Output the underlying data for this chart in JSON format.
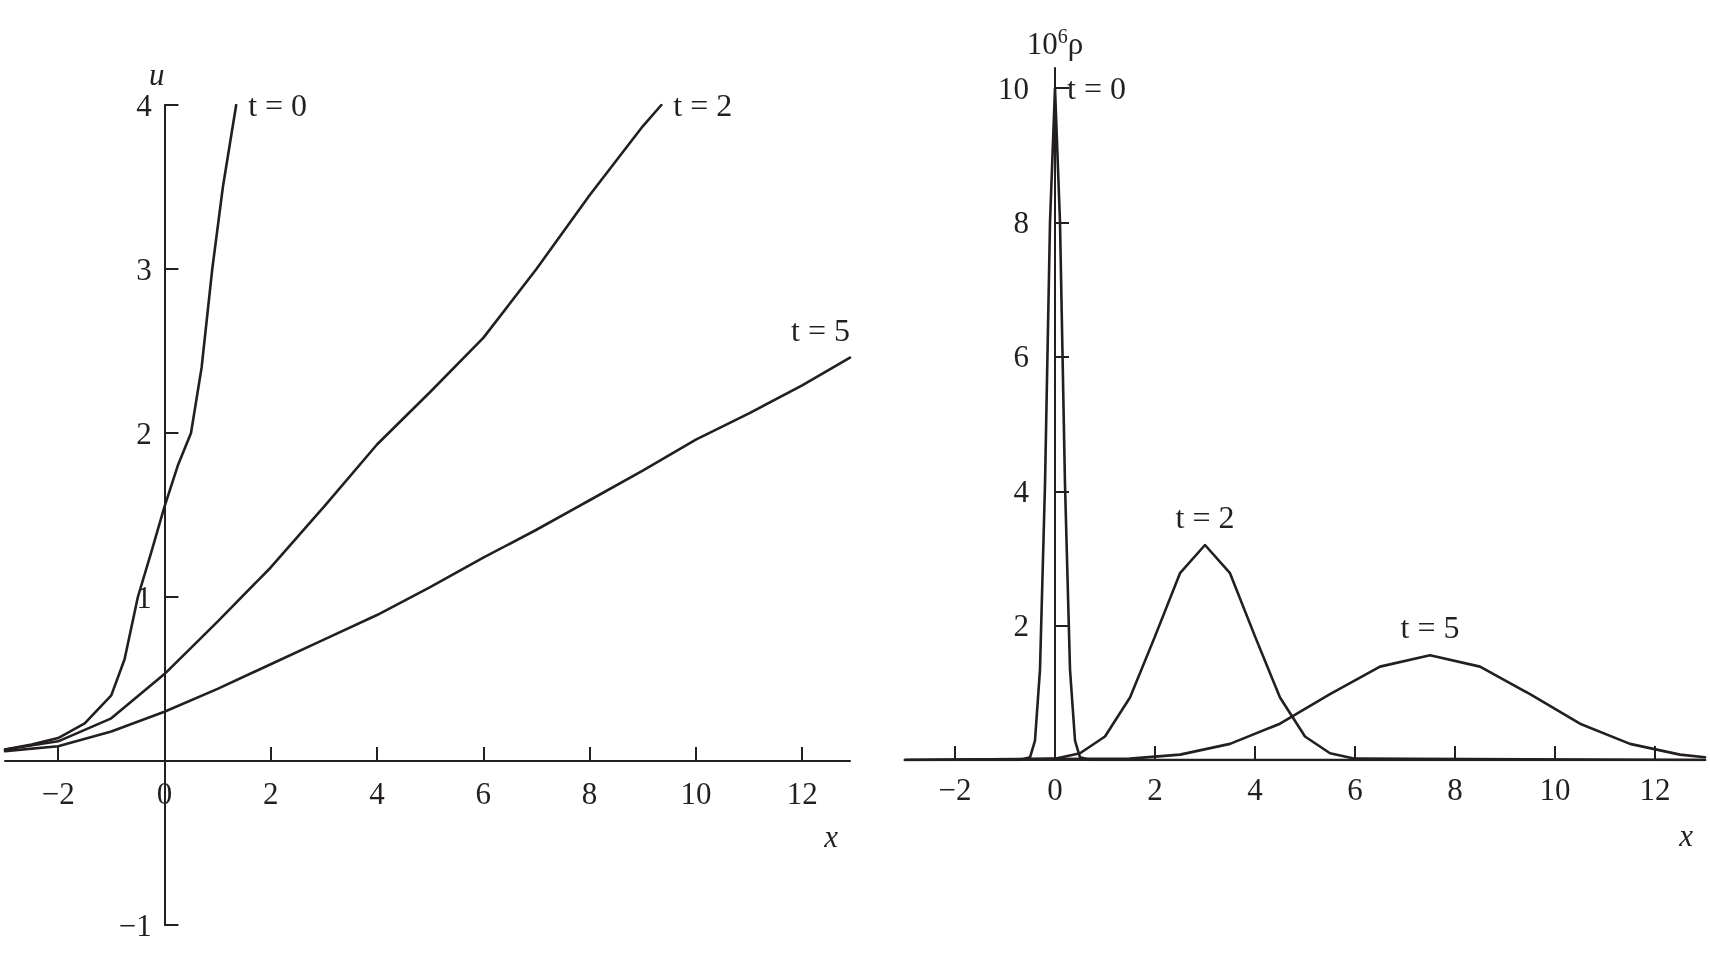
{
  "chart_data": [
    {
      "type": "line",
      "ylabel": "u",
      "xlabel": "x",
      "xlim": [
        -3,
        12.9
      ],
      "ylim": [
        -1,
        4
      ],
      "xticks": [
        -2,
        0,
        2,
        4,
        6,
        8,
        10,
        12
      ],
      "yticks": [
        -1,
        1,
        2,
        3,
        4
      ],
      "grid": false,
      "legend": false,
      "marker": "none",
      "line_style": "solid",
      "series": [
        {
          "name": "t = 0",
          "color": "#231f20",
          "x": [
            -3,
            -2.5,
            -2,
            -1.5,
            -1,
            -0.75,
            -0.5,
            -0.25,
            0,
            0.25,
            0.5,
            0.7,
            0.9,
            1.1,
            1.35
          ],
          "values": [
            0.07,
            0.1,
            0.14,
            0.23,
            0.4,
            0.62,
            1.0,
            1.27,
            1.55,
            1.8,
            2.0,
            2.4,
            3.0,
            3.5,
            4.0
          ]
        },
        {
          "name": "t = 2",
          "color": "#231f20",
          "x": [
            -3,
            -2,
            -1,
            0,
            1,
            2,
            3,
            4,
            5,
            6,
            7,
            8,
            9,
            9.35
          ],
          "values": [
            0.07,
            0.12,
            0.26,
            0.53,
            0.85,
            1.18,
            1.55,
            1.93,
            2.25,
            2.58,
            3.0,
            3.45,
            3.87,
            4.0
          ]
        },
        {
          "name": "t = 5",
          "color": "#231f20",
          "x": [
            -3,
            -2,
            -1,
            0,
            1,
            2,
            3,
            4,
            5,
            6,
            7,
            8,
            9,
            10,
            11,
            12,
            12.9
          ],
          "values": [
            0.06,
            0.09,
            0.18,
            0.3,
            0.44,
            0.59,
            0.74,
            0.89,
            1.06,
            1.24,
            1.41,
            1.59,
            1.77,
            1.96,
            2.12,
            2.29,
            2.46
          ]
        }
      ]
    },
    {
      "type": "line",
      "ylabel": "10$^{6}$ρ",
      "xlabel": "x",
      "xlim": [
        -3,
        13
      ],
      "ylim": [
        0,
        10.3
      ],
      "xticks": [
        -2,
        0,
        2,
        4,
        6,
        8,
        10,
        12
      ],
      "yticks": [
        2,
        4,
        6,
        8,
        10
      ],
      "grid": false,
      "legend": false,
      "marker": "none",
      "line_style": "solid",
      "series": [
        {
          "name": "t = 0",
          "color": "#231f20",
          "x": [
            -3,
            -0.7,
            -0.5,
            -0.4,
            -0.3,
            -0.2,
            -0.1,
            0,
            0.1,
            0.2,
            0.3,
            0.4,
            0.5,
            0.7,
            13
          ],
          "values": [
            0,
            0,
            0.04,
            0.29,
            1.35,
            4.1,
            8.0,
            10,
            8.0,
            4.1,
            1.35,
            0.29,
            0.04,
            0,
            0
          ]
        },
        {
          "name": "t = 2",
          "color": "#231f20",
          "x": [
            -3,
            0,
            0.5,
            1,
            1.5,
            2,
            2.5,
            3,
            3.5,
            4,
            4.5,
            5,
            5.5,
            6,
            13
          ],
          "values": [
            0,
            0.02,
            0.1,
            0.35,
            0.93,
            1.84,
            2.78,
            3.2,
            2.78,
            1.84,
            0.93,
            0.35,
            0.1,
            0.02,
            0
          ]
        },
        {
          "name": "t = 5",
          "color": "#231f20",
          "x": [
            -3,
            1.5,
            2.5,
            3.5,
            4.5,
            5.5,
            6.5,
            7.5,
            8.5,
            9.5,
            10.5,
            11.5,
            12.5,
            13
          ],
          "values": [
            0,
            0.02,
            0.08,
            0.24,
            0.54,
            0.98,
            1.39,
            1.56,
            1.39,
            0.98,
            0.54,
            0.24,
            0.08,
            0.04
          ]
        }
      ]
    }
  ]
}
